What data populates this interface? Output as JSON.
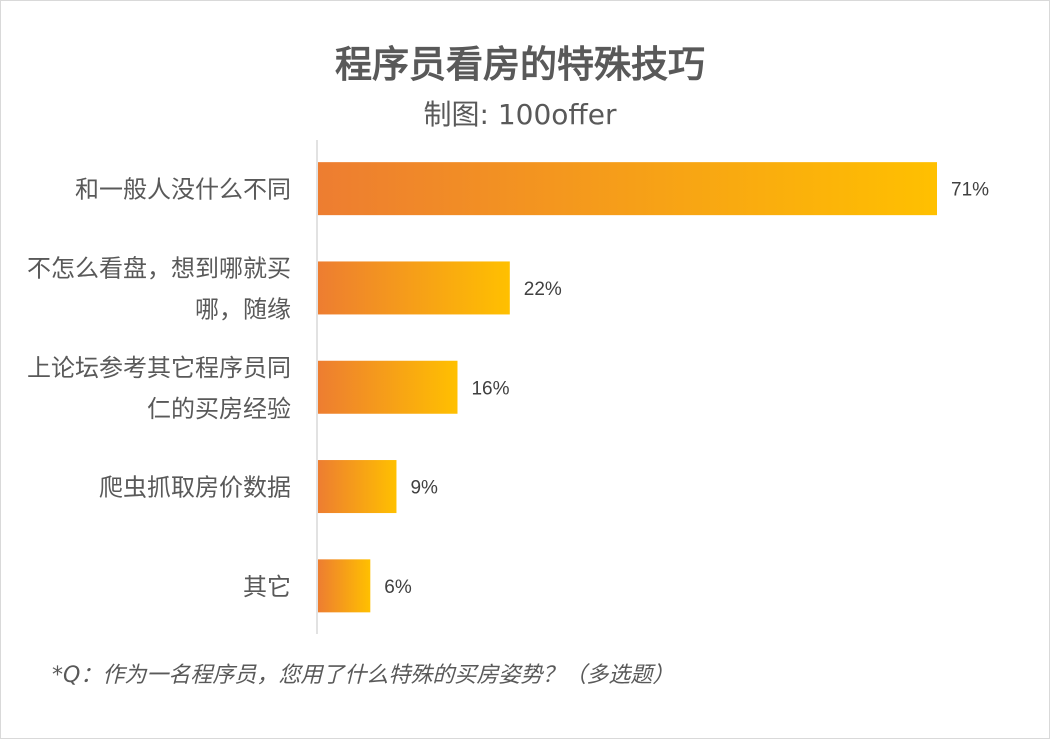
{
  "chart_data": {
    "type": "bar",
    "orientation": "horizontal",
    "title": "程序员看房的特殊技巧",
    "subtitle": "制图: 100offer",
    "categories": [
      [
        "和一般人没什么不同"
      ],
      [
        "不怎么看盘，想到哪就买",
        "哪，随缘"
      ],
      [
        "上论坛参考其它程序员同",
        "仁的买房经验"
      ],
      [
        "爬虫抓取房价数据"
      ],
      [
        "其它"
      ]
    ],
    "values": [
      71,
      22,
      16,
      9,
      6
    ],
    "value_labels": [
      "71%",
      "22%",
      "16%",
      "9%",
      "6%"
    ],
    "unit": "%",
    "xlim": [
      0,
      71
    ],
    "grid": false,
    "legend": "none",
    "bar_gradient": [
      "#ED7D31",
      "#FFC000"
    ],
    "note": "*Q：作为一名程序员，您用了什么特殊的买房姿势？（多选题）"
  }
}
